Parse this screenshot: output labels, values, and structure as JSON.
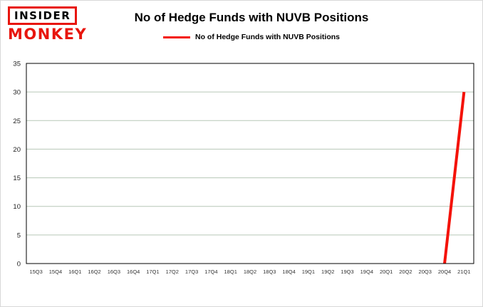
{
  "header": {
    "logo": {
      "line1": "INSIDER",
      "line2": "MONKEY"
    },
    "title": "No of Hedge Funds with NUVB Positions"
  },
  "legend": {
    "label": "No of Hedge Funds with NUVB Positions"
  },
  "colors": {
    "brand_red": "#e8150d",
    "line_red": "#f41208",
    "gridline_green": "#b7c7b7"
  },
  "chart_data": {
    "type": "line",
    "title": "No of Hedge Funds with NUVB Positions",
    "categories": [
      "15Q3",
      "15Q4",
      "16Q1",
      "16Q2",
      "16Q3",
      "16Q4",
      "17Q1",
      "17Q2",
      "17Q3",
      "17Q4",
      "18Q1",
      "18Q2",
      "18Q3",
      "18Q4",
      "19Q1",
      "19Q2",
      "19Q3",
      "19Q4",
      "20Q1",
      "20Q2",
      "20Q3",
      "20Q4",
      "21Q1"
    ],
    "values": [
      null,
      null,
      null,
      null,
      null,
      null,
      null,
      null,
      null,
      null,
      null,
      null,
      null,
      null,
      null,
      null,
      null,
      null,
      null,
      null,
      null,
      0,
      30
    ],
    "xlabel": "",
    "ylabel": "",
    "ylim": [
      0,
      35
    ],
    "yticks": [
      0,
      5,
      10,
      15,
      20,
      25,
      30,
      35
    ],
    "grid": true,
    "gridline_color": "#b7c7b7",
    "line_color": "#f41208",
    "line_width": 4,
    "legend_position": "top"
  }
}
